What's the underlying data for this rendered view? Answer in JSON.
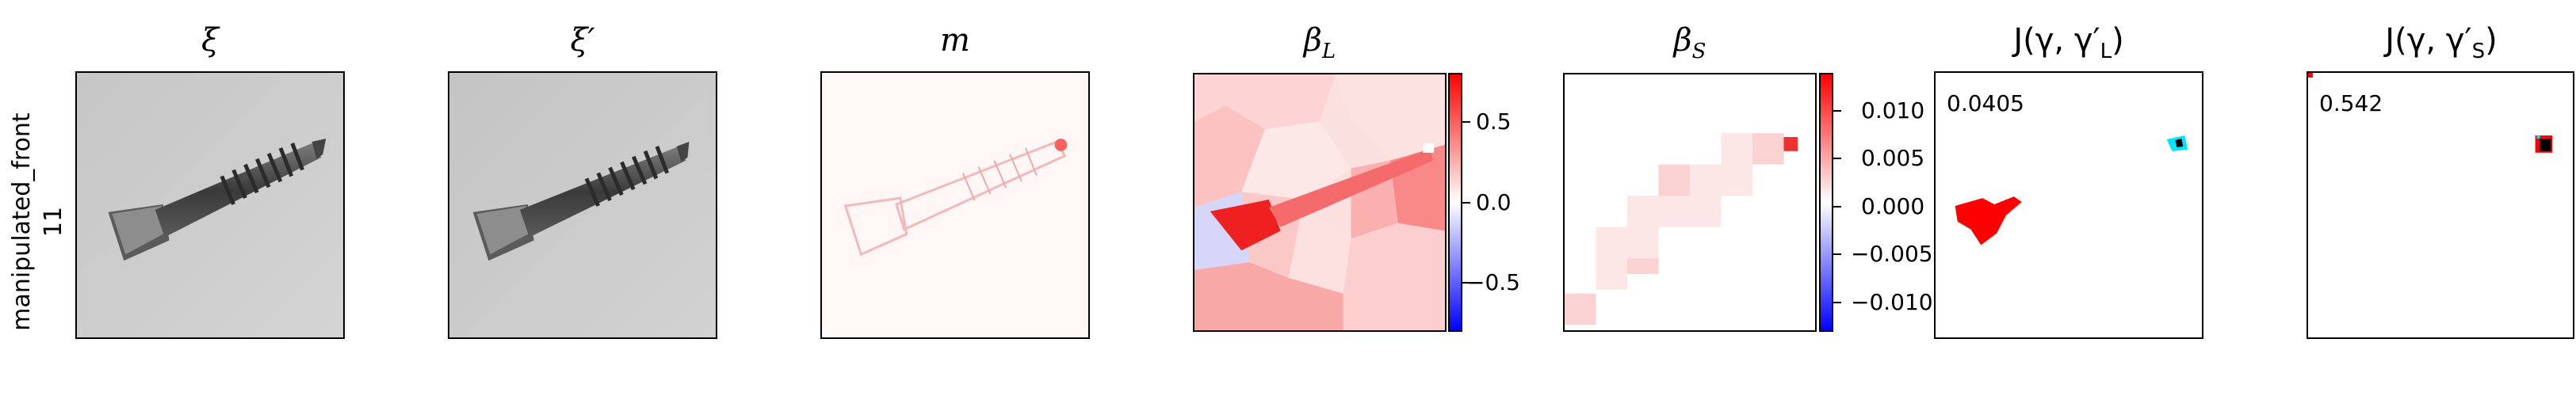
{
  "row": {
    "label_line1": "manipulated_front",
    "label_line2": "11"
  },
  "panels": [
    {
      "title": "ξ"
    },
    {
      "title": "ξ′"
    },
    {
      "title": "m"
    },
    {
      "title": "β_L",
      "title_main": "β",
      "title_sub": "L"
    },
    {
      "title": "β_S",
      "title_main": "β",
      "title_sub": "S"
    },
    {
      "title": "J(γ, γ′_L)",
      "title_prefix": "J(γ, γ′",
      "title_sub": "L",
      "title_suffix": ")",
      "value": "0.0405"
    },
    {
      "title": "J(γ, γ′_S)",
      "title_prefix": "J(γ, γ′",
      "title_sub": "S",
      "title_suffix": ")",
      "value": "0.542"
    }
  ],
  "colorbar_L": {
    "ticks": [
      "0.5",
      "0.0",
      "−0.5"
    ],
    "colors": {
      "top": "#ff0000",
      "mid": "#ffffff",
      "bottom": "#0000ff"
    }
  },
  "colorbar_S": {
    "ticks": [
      "0.010",
      "0.005",
      "0.000",
      "−0.005",
      "−0.010"
    ],
    "colors": {
      "top": "#ff0000",
      "mid": "#ffffff",
      "bottom": "#0000ff"
    }
  },
  "colors": {
    "overlay_red": "#ff0000",
    "overlay_cyan": "#00e5ff",
    "overlay_black": "#000000"
  }
}
